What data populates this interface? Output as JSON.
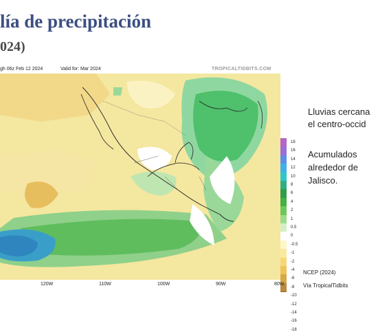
{
  "slide": {
    "title": "lía de precipitación",
    "subtitle": "024)"
  },
  "map": {
    "run_label": "gh 06z Feb 12 2024",
    "valid_label": "Valid for: Mar 2024",
    "brand": "TROPICALTIDBITS.COM",
    "longitude_labels": [
      "120W",
      "110W",
      "100W",
      "90W",
      "80W"
    ],
    "colorbar": {
      "labels": [
        "18",
        "16",
        "14",
        "12",
        "10",
        "8",
        "6",
        "4",
        "2",
        "1",
        "0.5",
        "0",
        "-0.5",
        "-1",
        "-2",
        "-4",
        "-6",
        "-8",
        "-10",
        "-12",
        "-14",
        "-16",
        "-18"
      ],
      "colors": [
        "#b566c7",
        "#9a6fd6",
        "#5d8fe8",
        "#3fb0e8",
        "#2fc7c7",
        "#2fae86",
        "#2f9d4b",
        "#44b045",
        "#6cc85a",
        "#9ddc8a",
        "#d4efc7",
        "#ffffff",
        "#fdf6c8",
        "#fbe9a0",
        "#f6d77a",
        "#ecc45a",
        "#d6a84a",
        "#b88a3e",
        "#9a6a2c",
        "#a54a2e",
        "#b03a2a",
        "#a2203a",
        "#8a1030"
      ]
    }
  },
  "notes": {
    "line1": "Lluvias cercana",
    "line2": "el centro-occid",
    "line3": "Acumulados",
    "line4": "alrededor   de",
    "line5": "Jalisco."
  },
  "credits": {
    "source": "NCEP (2024)",
    "via": "Vía TropicalTidbits"
  }
}
